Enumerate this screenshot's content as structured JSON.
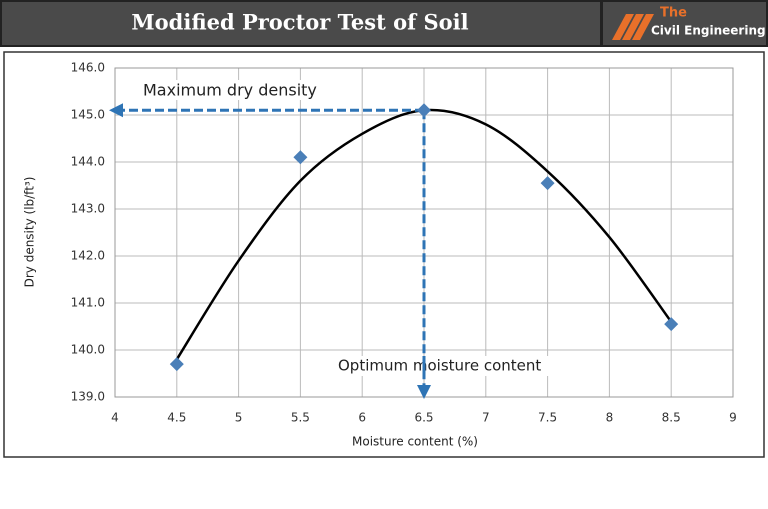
{
  "header": {
    "title": "Modified Proctor Test of Soil",
    "logo_top": "The",
    "logo_bottom": "Civil Engineering"
  },
  "chart_data": {
    "type": "scatter",
    "x_label": "Moisture content (%)",
    "y_label": "Dry density (lb/ft³)",
    "xlim": [
      4,
      9
    ],
    "xticks": [
      4,
      4.5,
      5,
      5.5,
      6,
      6.5,
      7,
      7.5,
      8,
      8.5,
      9
    ],
    "ylim": [
      139,
      146
    ],
    "yticks": [
      {
        "value": 139,
        "label": "139.0"
      },
      {
        "value": 140,
        "label": "140.0"
      },
      {
        "value": 141,
        "label": "141.0"
      },
      {
        "value": 142,
        "label": "142.0"
      },
      {
        "value": 143,
        "label": "143.0"
      },
      {
        "value": 144,
        "label": "144.0"
      },
      {
        "value": 145,
        "label": "145.0"
      },
      {
        "value": 146,
        "label": "146.0"
      }
    ],
    "grid": true,
    "x": [
      4.5,
      5.5,
      6.5,
      7.5,
      8.5
    ],
    "values": [
      139.7,
      144.1,
      145.1,
      143.55,
      140.55
    ],
    "color": "#4a7fb8",
    "curve": {
      "x": [
        4.5,
        5.0,
        5.5,
        6.0,
        6.5,
        7.0,
        7.5,
        8.0,
        8.5
      ],
      "values": [
        139.8,
        141.9,
        143.6,
        144.6,
        145.1,
        144.8,
        143.8,
        142.4,
        140.6
      ],
      "color": "#000000"
    },
    "annotations": [
      {
        "text": "Maximum dry density",
        "value": 145.1,
        "color": "#2e74b5"
      },
      {
        "text": "Optimum moisture content",
        "value": 6.5,
        "color": "#2e74b5"
      }
    ]
  }
}
